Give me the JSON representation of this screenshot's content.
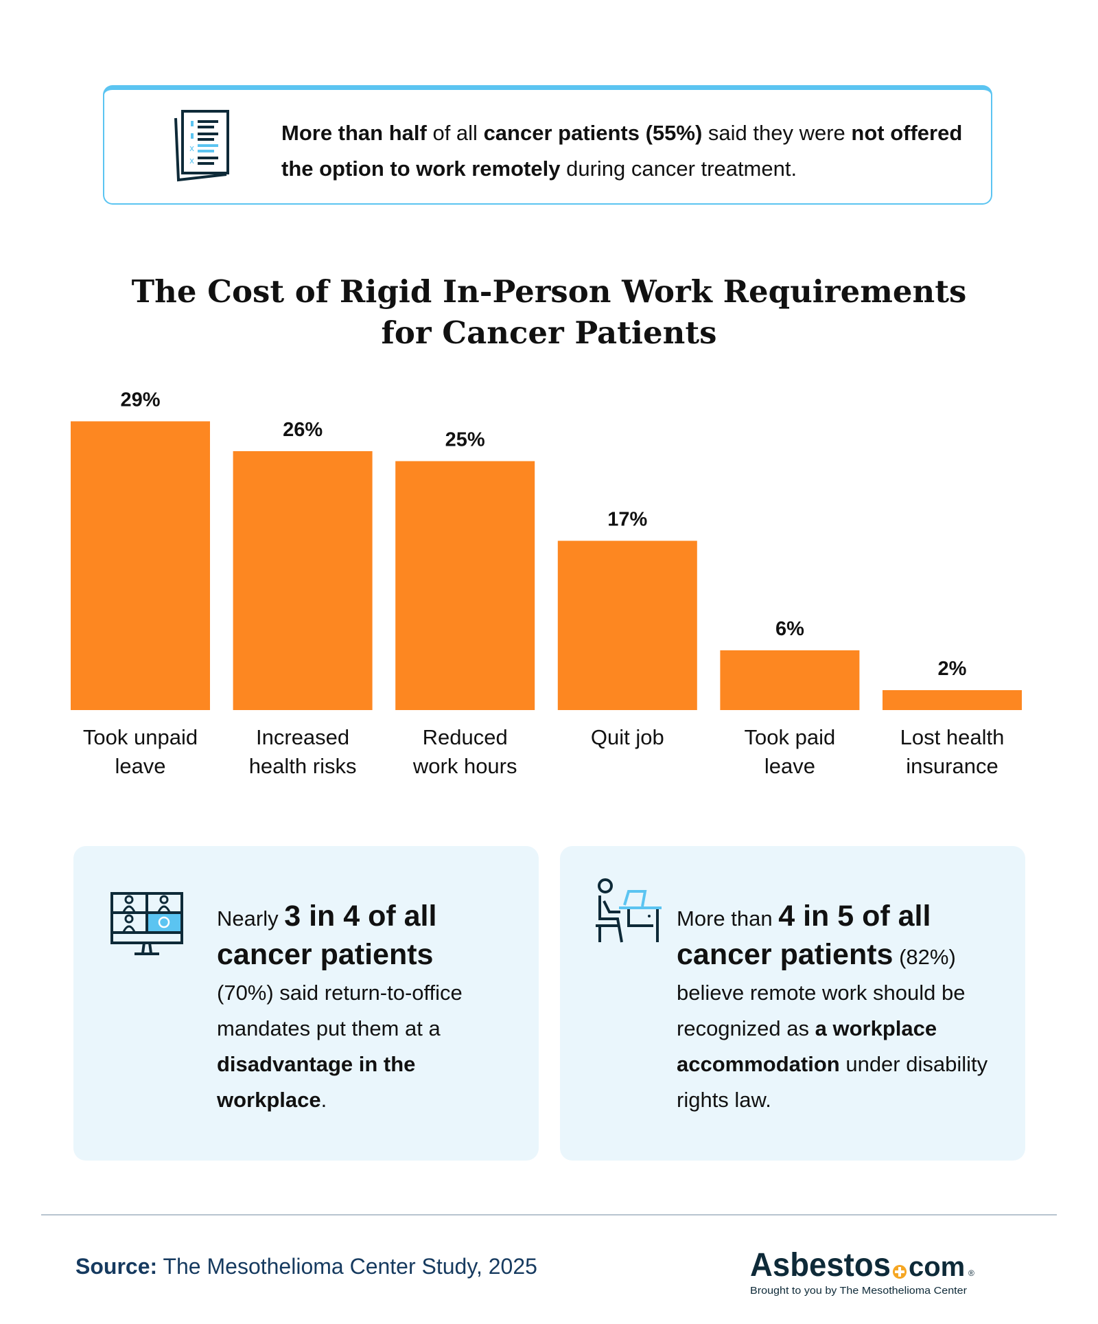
{
  "callout_top": {
    "icon": "checklist-document-icon",
    "segments": [
      {
        "text": "More than half",
        "bold": true
      },
      {
        "text": " of all ",
        "bold": false
      },
      {
        "text": "cancer patients (55%)",
        "bold": true
      },
      {
        "text": " said they were ",
        "bold": false
      },
      {
        "text": "not offered the option to work remotely",
        "bold": true
      },
      {
        "text": " during cancer treatment.",
        "bold": false
      }
    ]
  },
  "chart_data": {
    "type": "bar",
    "title": "The Cost of Rigid In-Person Work Requirements for Cancer Patients",
    "title_lines": [
      "The Cost of Rigid In-Person Work Requirements",
      "for Cancer Patients"
    ],
    "categories": [
      [
        "Took unpaid",
        "leave"
      ],
      [
        "Increased",
        "health risks"
      ],
      [
        "Reduced",
        "work hours"
      ],
      [
        "Quit job"
      ],
      [
        "Took paid",
        "leave"
      ],
      [
        "Lost health",
        "insurance"
      ]
    ],
    "values": [
      29,
      26,
      25,
      17,
      6,
      2
    ],
    "value_labels": [
      "29%",
      "26%",
      "25%",
      "17%",
      "6%",
      "2%"
    ],
    "unit": "%",
    "ylim": [
      0,
      30
    ],
    "grid": false,
    "bar_color": "#fd8721"
  },
  "card_left": {
    "icon": "video-call-grid-icon",
    "lead": "Nearly ",
    "big": "3 in 4 of all cancer patients",
    "small": "(70%) said return-to-office mandates put them at a ",
    "bold_end": "disadvantage in the workplace",
    "end": "."
  },
  "card_right": {
    "icon": "person-at-desk-laptop-icon",
    "lead": "More than ",
    "big": "4 in 5 of all cancer patients",
    "pct": " (82%)",
    "small": " believe remote work should be recognized as ",
    "bold_mid": "a workplace accommodation",
    "end": " under disability rights law."
  },
  "footer": {
    "source_label": "Source:",
    "source_text": " The Mesothelioma Center Study, 2025",
    "logo_text": "Asbestos.com",
    "logo_tagline": "Brought to you by The Mesothelioma Center"
  },
  "colors": {
    "accent_blue": "#5bc4f1",
    "orange": "#fd8721",
    "navy": "#163a5f",
    "card_bg": "#eaf6fc"
  }
}
